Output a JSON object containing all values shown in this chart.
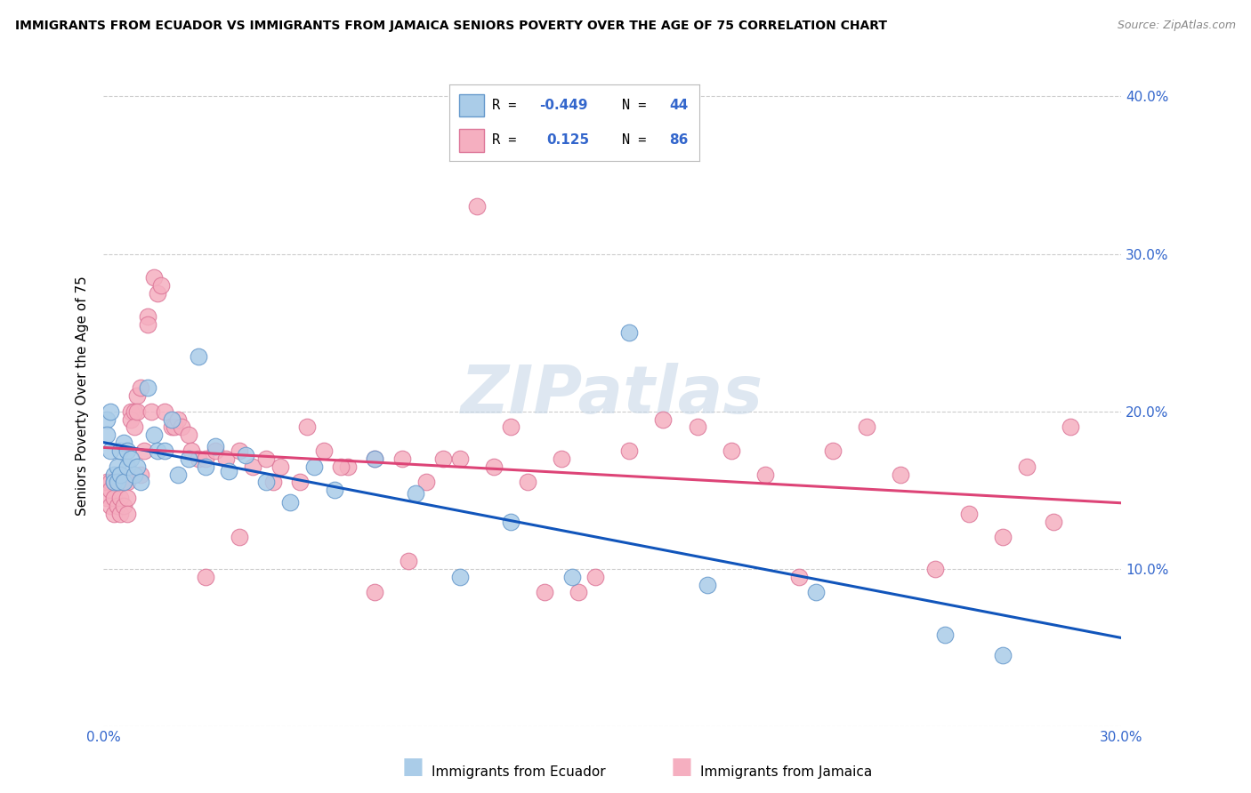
{
  "title": "IMMIGRANTS FROM ECUADOR VS IMMIGRANTS FROM JAMAICA SENIORS POVERTY OVER THE AGE OF 75 CORRELATION CHART",
  "source": "Source: ZipAtlas.com",
  "ylabel": "Seniors Poverty Over the Age of 75",
  "xlim": [
    0.0,
    0.3
  ],
  "ylim": [
    0.0,
    0.42
  ],
  "x_ticks": [
    0.0,
    0.05,
    0.1,
    0.15,
    0.2,
    0.25,
    0.3
  ],
  "y_ticks": [
    0.0,
    0.1,
    0.2,
    0.3,
    0.4
  ],
  "watermark": "ZIPatlas",
  "ecuador_color": "#aacce8",
  "ecuador_edge": "#6699cc",
  "jamaica_color": "#f5afc0",
  "jamaica_edge": "#dd7799",
  "ecuador_R": -0.449,
  "ecuador_N": 44,
  "jamaica_R": 0.125,
  "jamaica_N": 86,
  "ecuador_line_color": "#1155bb",
  "jamaica_line_color": "#dd4477",
  "blue_text_color": "#3366cc",
  "ecuador_x": [
    0.001,
    0.001,
    0.002,
    0.002,
    0.003,
    0.003,
    0.004,
    0.004,
    0.005,
    0.005,
    0.006,
    0.006,
    0.007,
    0.007,
    0.008,
    0.009,
    0.01,
    0.011,
    0.013,
    0.015,
    0.016,
    0.018,
    0.02,
    0.022,
    0.025,
    0.028,
    0.03,
    0.033,
    0.037,
    0.042,
    0.048,
    0.055,
    0.062,
    0.068,
    0.08,
    0.092,
    0.105,
    0.12,
    0.138,
    0.155,
    0.178,
    0.21,
    0.248,
    0.265
  ],
  "ecuador_y": [
    0.195,
    0.185,
    0.2,
    0.175,
    0.16,
    0.155,
    0.165,
    0.155,
    0.175,
    0.16,
    0.155,
    0.18,
    0.175,
    0.165,
    0.17,
    0.16,
    0.165,
    0.155,
    0.215,
    0.185,
    0.175,
    0.175,
    0.195,
    0.16,
    0.17,
    0.235,
    0.165,
    0.178,
    0.162,
    0.172,
    0.155,
    0.142,
    0.165,
    0.15,
    0.17,
    0.148,
    0.095,
    0.13,
    0.095,
    0.25,
    0.09,
    0.085,
    0.058,
    0.045
  ],
  "jamaica_x": [
    0.001,
    0.001,
    0.002,
    0.002,
    0.002,
    0.003,
    0.003,
    0.003,
    0.004,
    0.004,
    0.005,
    0.005,
    0.005,
    0.006,
    0.006,
    0.007,
    0.007,
    0.007,
    0.008,
    0.008,
    0.009,
    0.009,
    0.01,
    0.01,
    0.011,
    0.011,
    0.012,
    0.013,
    0.013,
    0.014,
    0.015,
    0.016,
    0.017,
    0.018,
    0.02,
    0.021,
    0.022,
    0.023,
    0.025,
    0.026,
    0.028,
    0.03,
    0.033,
    0.036,
    0.04,
    0.044,
    0.048,
    0.052,
    0.058,
    0.065,
    0.072,
    0.08,
    0.088,
    0.095,
    0.105,
    0.115,
    0.125,
    0.135,
    0.145,
    0.155,
    0.165,
    0.175,
    0.185,
    0.195,
    0.205,
    0.215,
    0.225,
    0.235,
    0.245,
    0.255,
    0.265,
    0.272,
    0.28,
    0.285,
    0.03,
    0.04,
    0.05,
    0.06,
    0.07,
    0.08,
    0.09,
    0.1,
    0.11,
    0.12,
    0.13,
    0.14
  ],
  "jamaica_y": [
    0.155,
    0.145,
    0.155,
    0.15,
    0.14,
    0.155,
    0.145,
    0.135,
    0.155,
    0.14,
    0.145,
    0.135,
    0.155,
    0.14,
    0.155,
    0.155,
    0.145,
    0.135,
    0.2,
    0.195,
    0.2,
    0.19,
    0.21,
    0.2,
    0.215,
    0.16,
    0.175,
    0.26,
    0.255,
    0.2,
    0.285,
    0.275,
    0.28,
    0.2,
    0.19,
    0.19,
    0.195,
    0.19,
    0.185,
    0.175,
    0.17,
    0.17,
    0.175,
    0.17,
    0.175,
    0.165,
    0.17,
    0.165,
    0.155,
    0.175,
    0.165,
    0.17,
    0.17,
    0.155,
    0.17,
    0.165,
    0.155,
    0.17,
    0.095,
    0.175,
    0.195,
    0.19,
    0.175,
    0.16,
    0.095,
    0.175,
    0.19,
    0.16,
    0.1,
    0.135,
    0.12,
    0.165,
    0.13,
    0.19,
    0.095,
    0.12,
    0.155,
    0.19,
    0.165,
    0.085,
    0.105,
    0.17,
    0.33,
    0.19,
    0.085,
    0.085
  ]
}
